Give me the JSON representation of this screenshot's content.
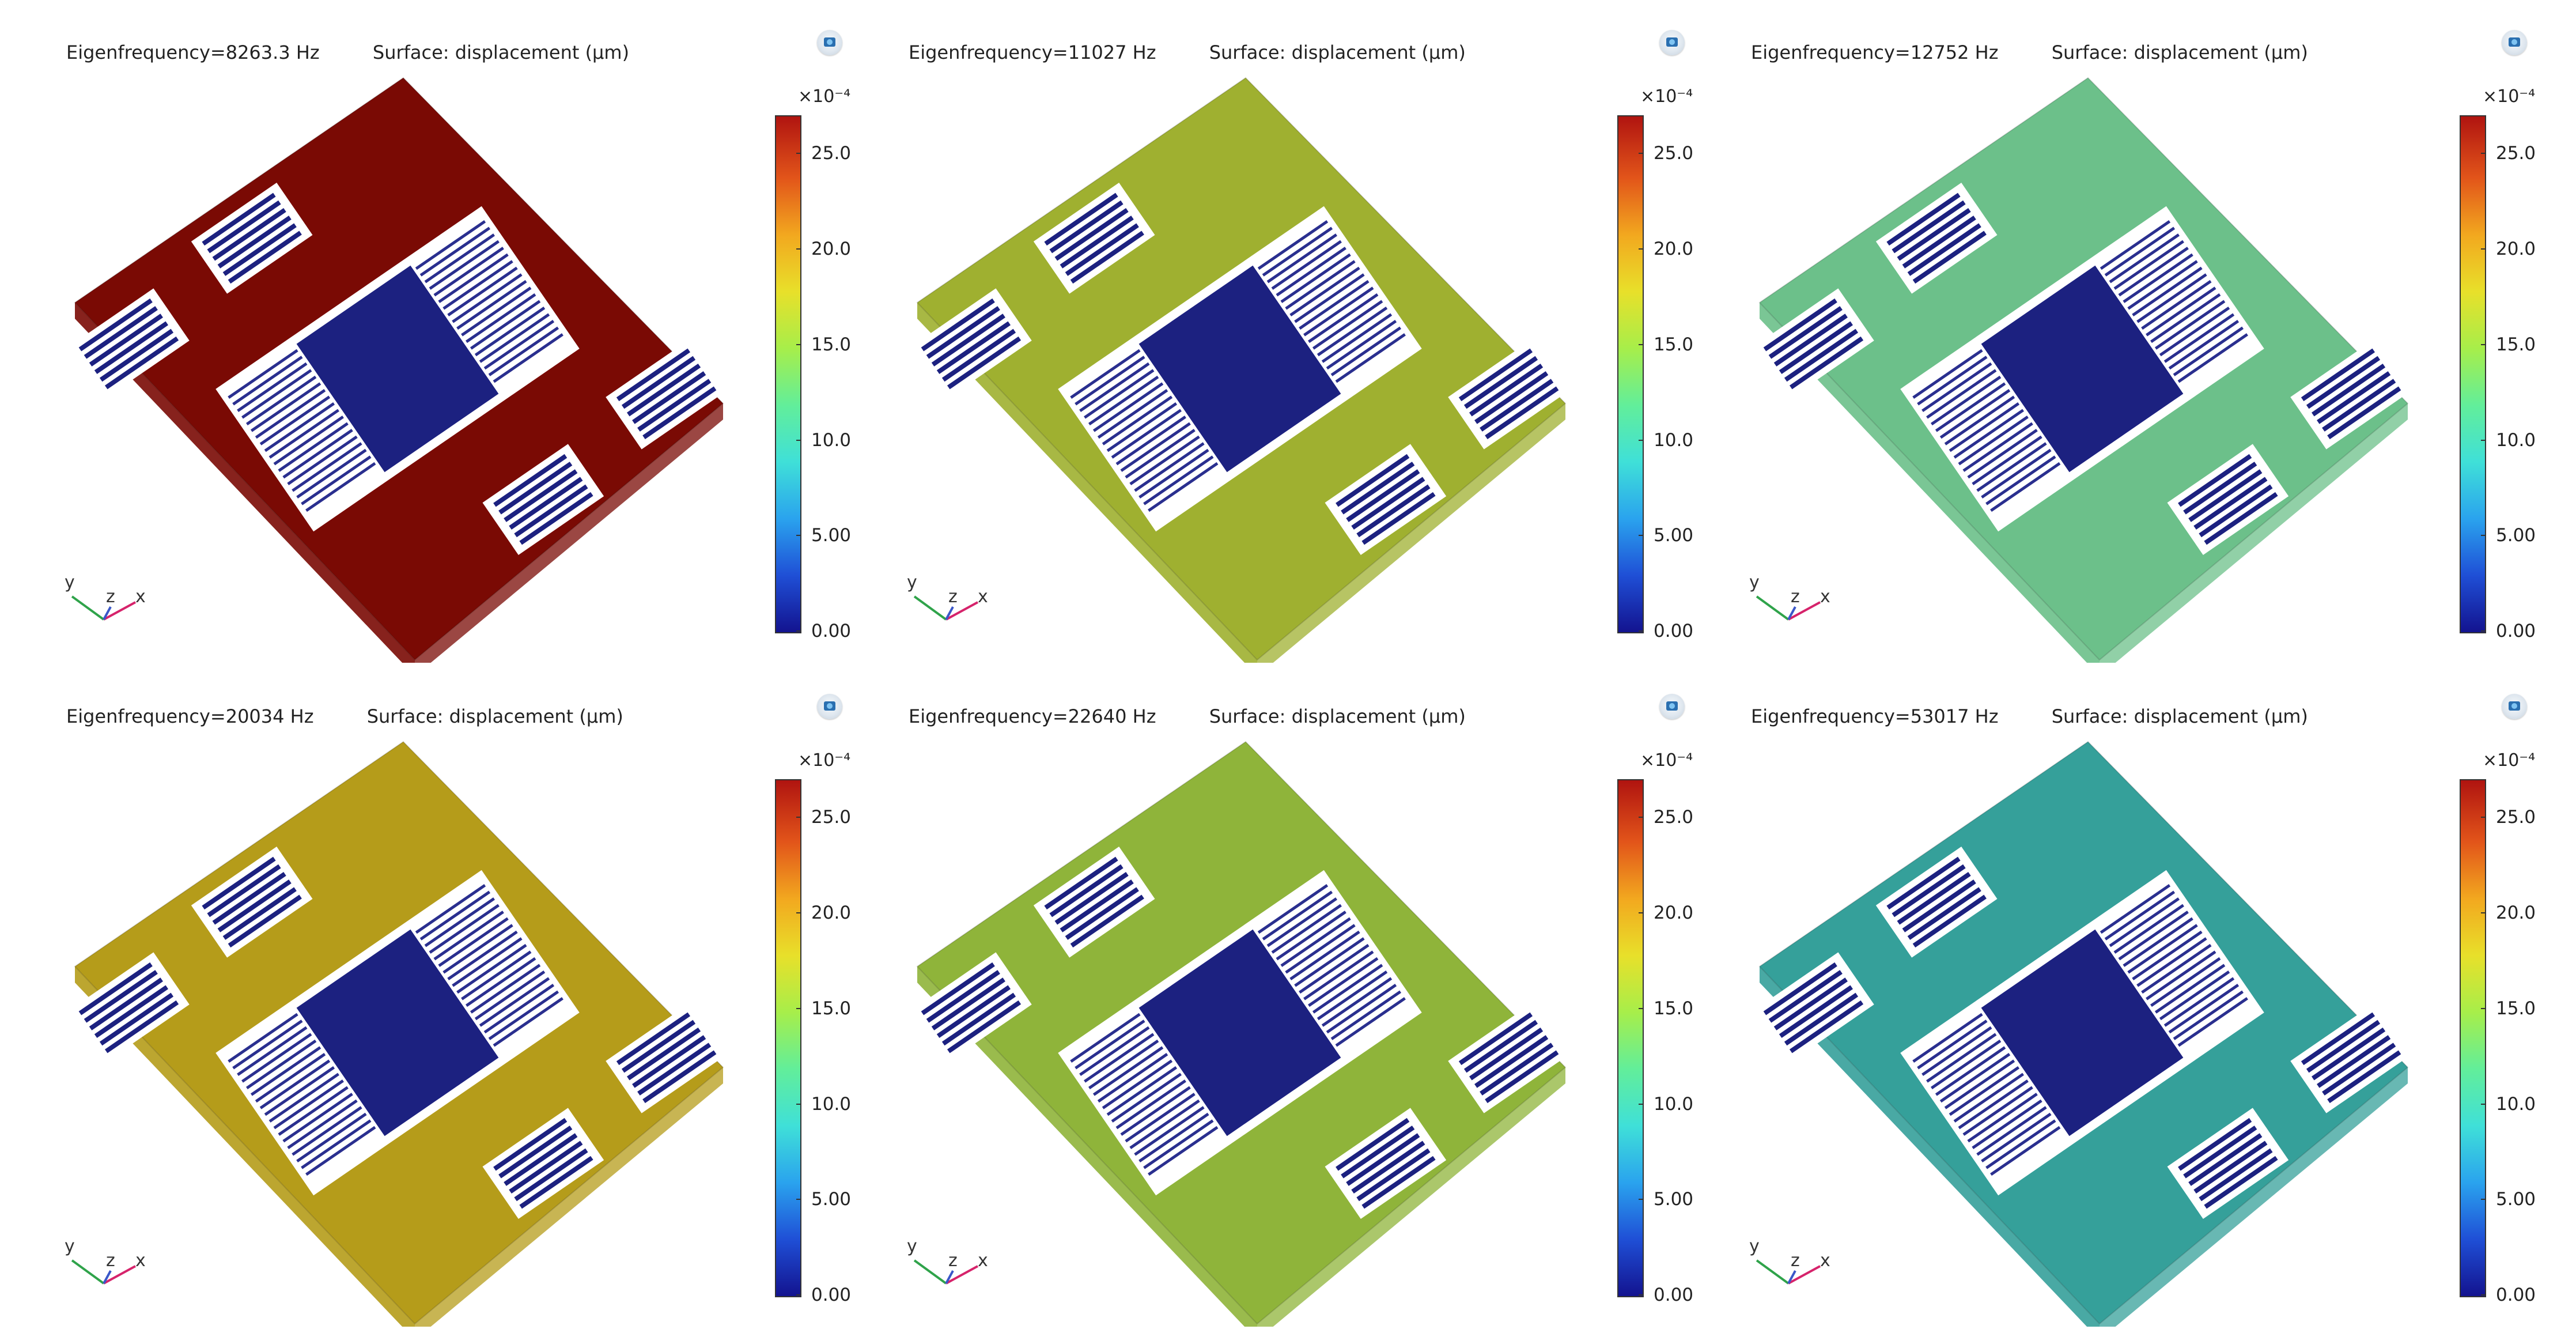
{
  "chart_data": [
    {
      "type": "surface-plot",
      "title": "Eigenfrequency=8263.3 Hz",
      "subtitle": "Surface: displacement (µm)",
      "eigenfrequency_hz": 8263.3,
      "colorbar": {
        "exponent": "×10⁻⁴",
        "ticks": [
          "25.0",
          "20.0",
          "15.0",
          "10.0",
          "5.00",
          "0.00"
        ],
        "tick_values": [
          25,
          20,
          15,
          10,
          5,
          0
        ],
        "range": [
          0,
          27
        ]
      },
      "axes": {
        "labels": [
          "y",
          "z",
          "x"
        ]
      },
      "plate_color": "#7a0a04"
    },
    {
      "type": "surface-plot",
      "title": "Eigenfrequency=11027 Hz",
      "subtitle": "Surface: displacement (µm)",
      "eigenfrequency_hz": 11027,
      "colorbar": {
        "exponent": "×10⁻⁴",
        "ticks": [
          "25.0",
          "20.0",
          "15.0",
          "10.0",
          "5.00",
          "0.00"
        ],
        "tick_values": [
          25,
          20,
          15,
          10,
          5,
          0
        ],
        "range": [
          0,
          27
        ]
      },
      "axes": {
        "labels": [
          "y",
          "z",
          "x"
        ]
      },
      "plate_color": "#9fb030"
    },
    {
      "type": "surface-plot",
      "title": "Eigenfrequency=12752 Hz",
      "subtitle": "Surface: displacement (µm)",
      "eigenfrequency_hz": 12752,
      "colorbar": {
        "exponent": "×10⁻⁴",
        "ticks": [
          "25.0",
          "20.0",
          "15.0",
          "10.0",
          "5.00",
          "0.00"
        ],
        "tick_values": [
          25,
          20,
          15,
          10,
          5,
          0
        ],
        "range": [
          0,
          27
        ]
      },
      "axes": {
        "labels": [
          "y",
          "z",
          "x"
        ]
      },
      "plate_color": "#6cc08a"
    },
    {
      "type": "surface-plot",
      "title": "Eigenfrequency=20034 Hz",
      "subtitle": "Surface: displacement (µm)",
      "eigenfrequency_hz": 20034,
      "colorbar": {
        "exponent": "×10⁻⁴",
        "ticks": [
          "25.0",
          "20.0",
          "15.0",
          "10.0",
          "5.00",
          "0.00"
        ],
        "tick_values": [
          25,
          20,
          15,
          10,
          5,
          0
        ],
        "range": [
          0,
          27
        ]
      },
      "axes": {
        "labels": [
          "y",
          "z",
          "x"
        ]
      },
      "plate_color": "#b59c1a"
    },
    {
      "type": "surface-plot",
      "title": "Eigenfrequency=22640 Hz",
      "subtitle": "Surface: displacement (µm)",
      "eigenfrequency_hz": 22640,
      "colorbar": {
        "exponent": "×10⁻⁴",
        "ticks": [
          "25.0",
          "20.0",
          "15.0",
          "10.0",
          "5.00",
          "0.00"
        ],
        "tick_values": [
          25,
          20,
          15,
          10,
          5,
          0
        ],
        "range": [
          0,
          27
        ]
      },
      "axes": {
        "labels": [
          "y",
          "z",
          "x"
        ]
      },
      "plate_color": "#8fb43a"
    },
    {
      "type": "surface-plot",
      "title": "Eigenfrequency=53017 Hz",
      "subtitle": "Surface: displacement (µm)",
      "eigenfrequency_hz": 53017,
      "colorbar": {
        "exponent": "×10⁻⁴",
        "ticks": [
          "25.0",
          "20.0",
          "15.0",
          "10.0",
          "5.00",
          "0.00"
        ],
        "tick_values": [
          25,
          20,
          15,
          10,
          5,
          0
        ],
        "range": [
          0,
          27
        ]
      },
      "axes": {
        "labels": [
          "y",
          "z",
          "x"
        ]
      },
      "plate_color": "#35a09a"
    }
  ]
}
